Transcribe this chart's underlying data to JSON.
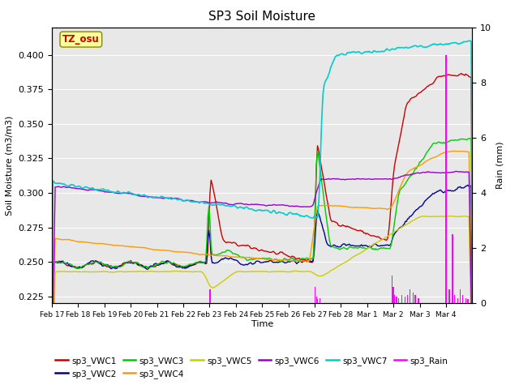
{
  "title": "SP3 Soil Moisture",
  "ylabel_left": "Soil Moisture (m3/m3)",
  "ylabel_right": "Rain (mm)",
  "xlabel": "Time",
  "ylim_left": [
    0.22,
    0.42
  ],
  "ylim_right": [
    0.0,
    10.0
  ],
  "bg_color": "#e8e8e8",
  "fig_color": "#ffffff",
  "grid_color": "#ffffff",
  "tz_label": "TZ_osu",
  "tz_box_color": "#ffff99",
  "tz_text_color": "#cc0000",
  "series_colors": {
    "sp3_VWC1": "#cc0000",
    "sp3_VWC2": "#000099",
    "sp3_VWC3": "#00cc00",
    "sp3_VWC4": "#ff9900",
    "sp3_VWC5": "#cccc00",
    "sp3_VWC6": "#9900cc",
    "sp3_VWC7": "#00cccc",
    "sp3_Rain": "#ff00ff"
  },
  "x_tick_labels": [
    "Feb 17",
    "Feb 18",
    "Feb 19",
    "Feb 20",
    "Feb 21",
    "Feb 22",
    "Feb 23",
    "Feb 24",
    "Feb 25",
    "Feb 26",
    "Feb 27",
    "Feb 28",
    "Mar 1",
    "Mar 2",
    "Mar 3",
    "Mar 4"
  ],
  "legend_row1": [
    {
      "label": "sp3_VWC1",
      "color": "#cc0000"
    },
    {
      "label": "sp3_VWC2",
      "color": "#000099"
    },
    {
      "label": "sp3_VWC3",
      "color": "#00cc00"
    },
    {
      "label": "sp3_VWC4",
      "color": "#ff9900"
    },
    {
      "label": "sp3_VWC5",
      "color": "#cccc00"
    },
    {
      "label": "sp3_VWC6",
      "color": "#9900cc"
    }
  ],
  "legend_row2": [
    {
      "label": "sp3_VWC7",
      "color": "#00cccc"
    },
    {
      "label": "sp3_Rain",
      "color": "#ff00ff"
    }
  ]
}
